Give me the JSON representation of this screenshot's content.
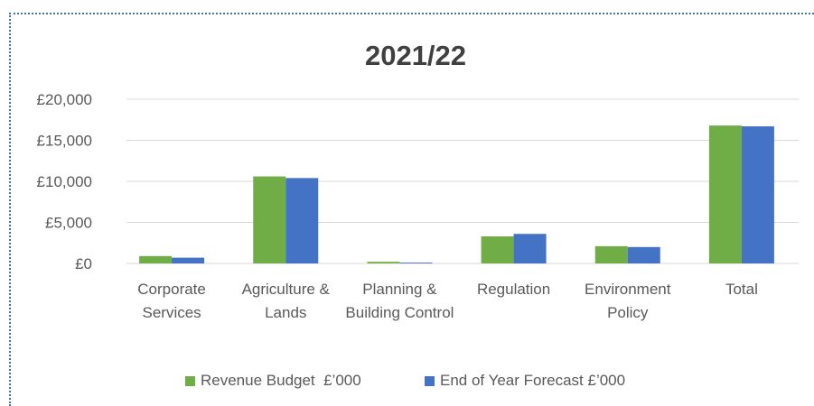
{
  "chart_data": {
    "type": "bar",
    "title": "2021/22",
    "categories": [
      "Corporate Services",
      "Agriculture & Lands",
      "Planning & Building Control",
      "Regulation",
      "Environment Policy",
      "Total"
    ],
    "series": [
      {
        "name": "Revenue Budget  £’000",
        "color": "#70ad47",
        "values": [
          900,
          10600,
          200,
          3300,
          2100,
          16800
        ]
      },
      {
        "name": "End of Year Forecast £’000",
        "color": "#4472c4",
        "values": [
          700,
          10400,
          100,
          3600,
          2000,
          16700
        ]
      }
    ],
    "ylim": [
      0,
      20000
    ],
    "yticks": [
      {
        "value": 0,
        "label": "£0"
      },
      {
        "value": 5000,
        "label": "£5,000"
      },
      {
        "value": 10000,
        "label": "£10,000"
      },
      {
        "value": 15000,
        "label": "£15,000"
      },
      {
        "value": 20000,
        "label": "£20,000"
      }
    ],
    "grid": true,
    "legend": "bottom"
  }
}
